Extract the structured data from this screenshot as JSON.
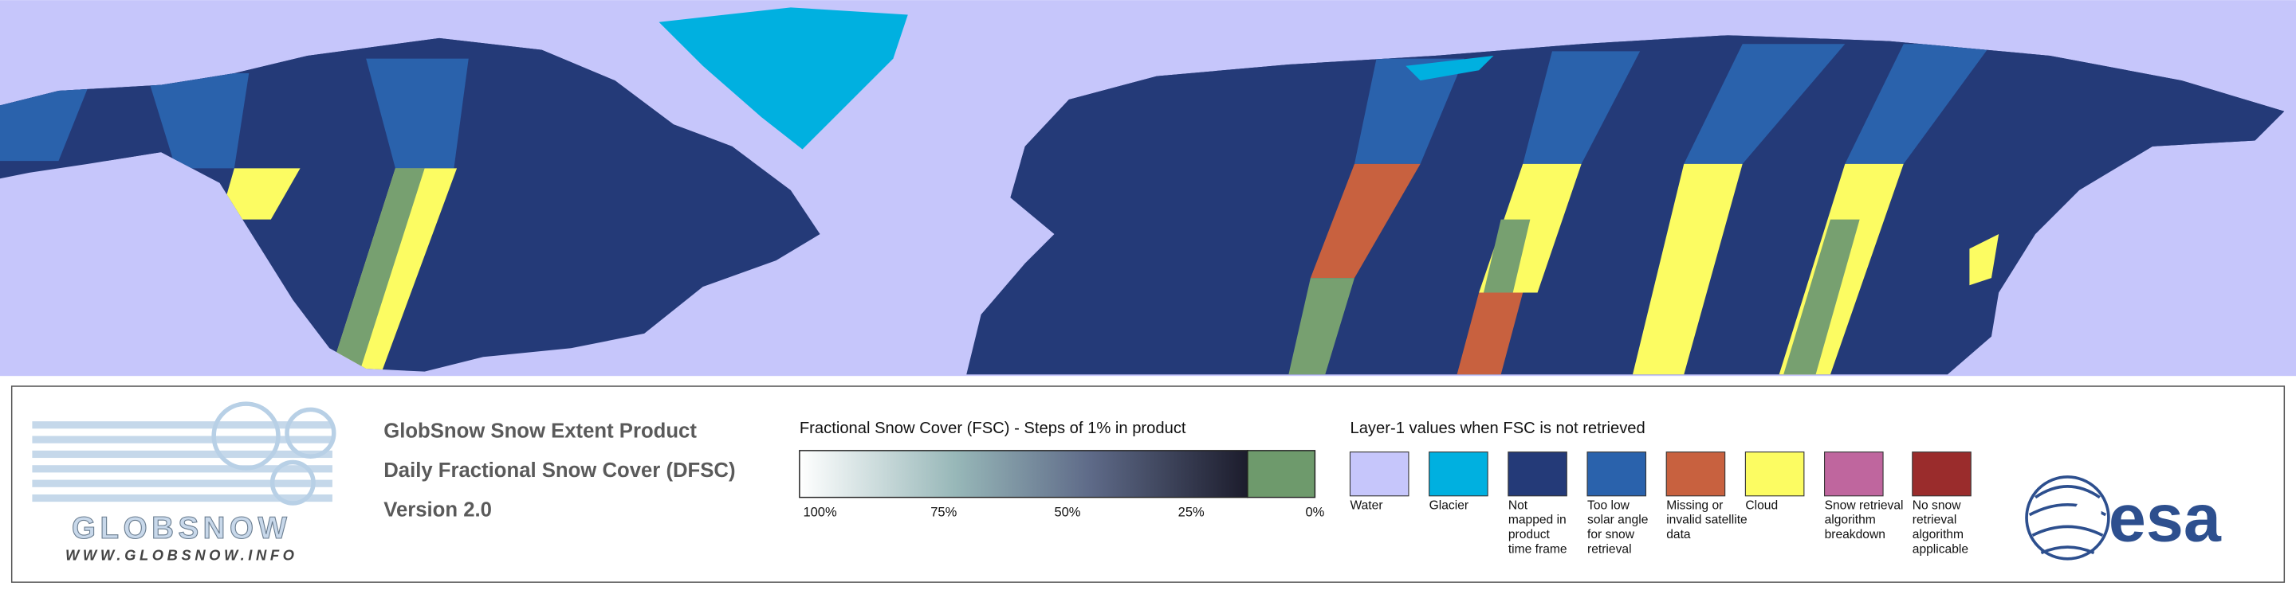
{
  "logo": {
    "name": "GLOBSNOW",
    "url": "WWW.GLOBSNOW.INFO"
  },
  "product": {
    "lines": [
      "GlobSnow Snow Extent Product",
      "Daily Fractional Snow Cover (DFSC)",
      "Version 2.0"
    ]
  },
  "colorbar": {
    "title": "Fractional Snow Cover (FSC) - Steps of 1% in product",
    "ticks": [
      "100%",
      "75%",
      "50%",
      "25%",
      "0%"
    ]
  },
  "layer_legend": {
    "title": "Layer-1 values when FSC is not retrieved",
    "items": [
      {
        "color": "#c6c6fb",
        "label": [
          "Water"
        ]
      },
      {
        "color": "#00b0e0",
        "label": [
          "Glacier"
        ]
      },
      {
        "color": "#243a78",
        "label": [
          "Not",
          "mapped in",
          "product",
          "time frame"
        ]
      },
      {
        "color": "#2a62ac",
        "label": [
          "Too low",
          "solar angle",
          "for snow",
          "retrieval"
        ]
      },
      {
        "color": "#c8613f",
        "label": [
          "Missing or",
          "invalid satellite",
          "data"
        ]
      },
      {
        "color": "#fcfc62",
        "label": [
          "Cloud"
        ]
      },
      {
        "color": "#bf669e",
        "label": [
          "Snow retrieval",
          "algorithm",
          "breakdown"
        ]
      },
      {
        "color": "#9a2c2c",
        "label": [
          "No snow",
          "retrieval",
          "algorithm",
          "applicable"
        ]
      }
    ]
  },
  "esa": {
    "name": "esa"
  }
}
